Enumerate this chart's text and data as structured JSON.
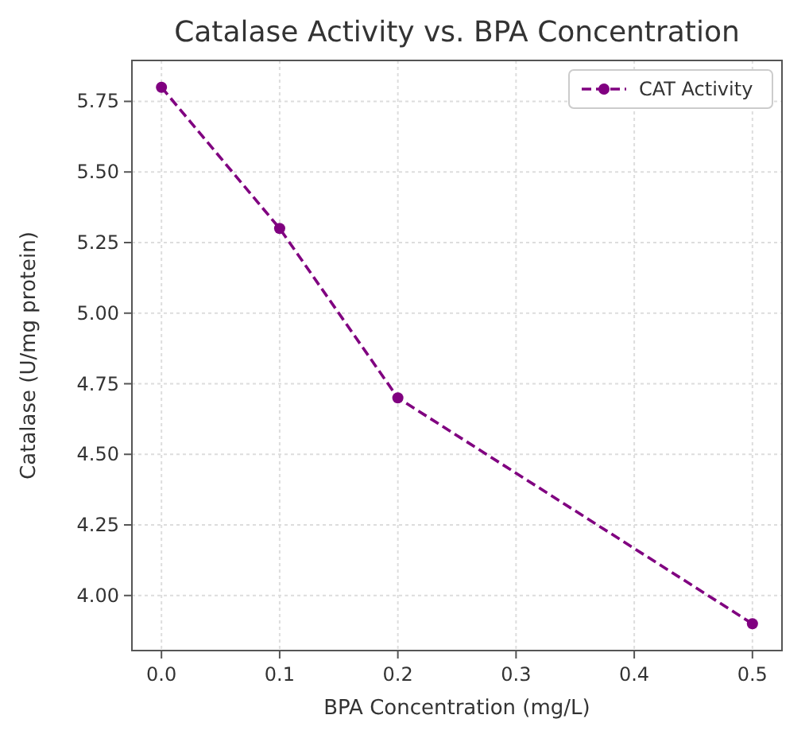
{
  "chart_data": {
    "type": "line",
    "title": "Catalase Activity vs. BPA Concentration",
    "xlabel": "BPA Concentration (mg/L)",
    "ylabel": "Catalase (U/mg protein)",
    "x": [
      0.0,
      0.1,
      0.2,
      0.5
    ],
    "series": [
      {
        "name": "CAT Activity",
        "color": "#800080",
        "values": [
          5.8,
          5.3,
          4.7,
          3.9
        ]
      }
    ],
    "xlim": [
      -0.025,
      0.525
    ],
    "xticks": [
      {
        "value": 0,
        "label": "0.0"
      },
      {
        "value": 0.1,
        "label": "0.1"
      },
      {
        "value": 0.2,
        "label": "0.2"
      },
      {
        "value": 0.3,
        "label": "0.3"
      },
      {
        "value": 0.4,
        "label": "0.4"
      },
      {
        "value": 0.5,
        "label": "0.5"
      }
    ],
    "ylim": [
      3.805,
      5.895
    ],
    "yticks": [
      {
        "value": 4,
        "label": "4.00"
      },
      {
        "value": 4.25,
        "label": "4.25"
      },
      {
        "value": 4.5,
        "label": "4.50"
      },
      {
        "value": 4.75,
        "label": "4.75"
      },
      {
        "value": 5,
        "label": "5.00"
      },
      {
        "value": 5.25,
        "label": "5.25"
      },
      {
        "value": 5.5,
        "label": "5.50"
      },
      {
        "value": 5.75,
        "label": "5.75"
      }
    ],
    "grid": true,
    "legend": "top right",
    "marker": "circle",
    "line_style": "dashed"
  }
}
